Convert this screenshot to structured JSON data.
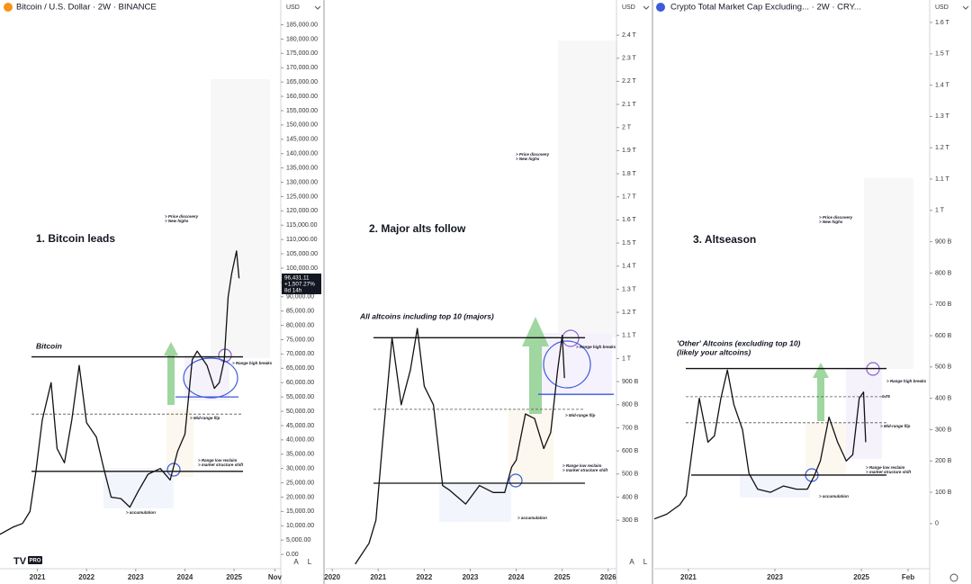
{
  "logo": "PRO",
  "controls": [
    "A",
    "L"
  ],
  "chart_data": [
    {
      "type": "line",
      "title": "Bitcoin / U.S. Dollar · 2W · BINANCE",
      "currency": "USD",
      "color": "#111111",
      "x": [
        2020.24,
        2020.5,
        2020.7,
        2020.85,
        2020.97,
        2021.1,
        2021.28,
        2021.4,
        2021.55,
        2021.7,
        2021.85,
        2022.0,
        2022.2,
        2022.35,
        2022.5,
        2022.7,
        2022.88,
        2023.05,
        2023.25,
        2023.5,
        2023.7,
        2023.85,
        2024.0,
        2024.15,
        2024.25,
        2024.45,
        2024.6,
        2024.7,
        2024.8,
        2024.88,
        2024.95,
        2025.05,
        2025.1
      ],
      "values": [
        7000,
        9500,
        10800,
        15000,
        29000,
        47000,
        60000,
        37000,
        32000,
        47000,
        66000,
        46000,
        41000,
        30000,
        20000,
        19500,
        16500,
        22000,
        28000,
        30000,
        26000,
        36000,
        42000,
        68000,
        71000,
        66000,
        58000,
        60000,
        68000,
        90000,
        98000,
        106000,
        96431.11
      ],
      "xlim": [
        2020.24,
        2025.95
      ],
      "ylim": [
        -5000,
        188000
      ],
      "xticks": [
        2021,
        2022,
        2023,
        2024,
        2025,
        {
          "value": 2025.83,
          "label": "Nov"
        }
      ],
      "yticks": [
        {
          "value": 0,
          "label": "0.00"
        },
        {
          "value": 5000,
          "label": "5,000.00"
        },
        {
          "value": 10000,
          "label": "10,000.00"
        },
        {
          "value": 15000,
          "label": "15,000.00"
        },
        {
          "value": 20000,
          "label": "20,000.00"
        },
        {
          "value": 25000,
          "label": "25,000.00"
        },
        {
          "value": 30000,
          "label": "30,000.00"
        },
        {
          "value": 35000,
          "label": "35,000.00"
        },
        {
          "value": 40000,
          "label": "40,000.00"
        },
        {
          "value": 45000,
          "label": "45,000.00"
        },
        {
          "value": 50000,
          "label": "50,000.00"
        },
        {
          "value": 55000,
          "label": "55,000.00"
        },
        {
          "value": 60000,
          "label": "60,000.00"
        },
        {
          "value": 65000,
          "label": "65,000.00"
        },
        {
          "value": 70000,
          "label": "70,000.00"
        },
        {
          "value": 75000,
          "label": "75,000.00"
        },
        {
          "value": 80000,
          "label": "80,000.00"
        },
        {
          "value": 85000,
          "label": "85,000.00"
        },
        {
          "value": 90000,
          "label": "90,000.00"
        },
        {
          "value": 95000,
          "label": "95,000.00"
        },
        {
          "value": 100000,
          "label": "100,000.00"
        },
        {
          "value": 105000,
          "label": "105,000.00"
        },
        {
          "value": 110000,
          "label": "110,000.00"
        },
        {
          "value": 115000,
          "label": "115,000.00"
        },
        {
          "value": 120000,
          "label": "120,000.00"
        },
        {
          "value": 125000,
          "label": "125,000.00"
        },
        {
          "value": 130000,
          "label": "130,000.00"
        },
        {
          "value": 135000,
          "label": "135,000.00"
        },
        {
          "value": 140000,
          "label": "140,000.00"
        },
        {
          "value": 145000,
          "label": "145,000.00"
        },
        {
          "value": 150000,
          "label": "150,000.00"
        },
        {
          "value": 155000,
          "label": "155,000.00"
        },
        {
          "value": 160000,
          "label": "160,000.00"
        },
        {
          "value": 165000,
          "label": "165,000.00"
        },
        {
          "value": 170000,
          "label": "170,000.00"
        },
        {
          "value": 175000,
          "label": "175,000.00"
        },
        {
          "value": 180000,
          "label": "180,000.00"
        },
        {
          "value": 185000,
          "label": "185,000.00"
        }
      ],
      "levels": [
        {
          "value": 69000,
          "color": "#111111",
          "dashed": false
        },
        {
          "value": 49000,
          "color": "#555555",
          "dashed": true
        },
        {
          "value": 29000,
          "color": "#111111",
          "dashed": false
        },
        {
          "value": 55000,
          "color": "#3b5bdb",
          "dashed": false
        }
      ],
      "price_label": [
        "96,431.11",
        "+1,507.27%",
        "8d 14h"
      ],
      "annotations": [
        "1. Bitcoin leads",
        "Bitcoin",
        "> Price discovery",
        "> New highs",
        "> Range high breaks",
        "> Mid-range flip",
        "> Range low reclaim",
        "> market structure shift",
        "> accumulation"
      ]
    },
    {
      "type": "line",
      "currency": "USD",
      "color": "#111111",
      "x": [
        2020.5,
        2020.8,
        2020.95,
        2021.1,
        2021.3,
        2021.5,
        2021.7,
        2021.85,
        2022.0,
        2022.2,
        2022.4,
        2022.55,
        2022.9,
        2023.2,
        2023.5,
        2023.75,
        2023.9,
        2024.0,
        2024.2,
        2024.4,
        2024.6,
        2024.75,
        2024.9,
        2025.0,
        2025.05
      ],
      "values": [
        110,
        200,
        300,
        650,
        1090,
        800,
        950,
        1130,
        880,
        800,
        450,
        430,
        370,
        450,
        420,
        420,
        530,
        560,
        760,
        740,
        610,
        680,
        950,
        1100,
        915
      ],
      "xlim": [
        2019.86,
        2026.18
      ],
      "ylim": [
        90,
        2482
      ],
      "xticks": [
        2020,
        2021,
        2022,
        2023,
        2024,
        2025,
        2026
      ],
      "yticks": [
        {
          "value": 300,
          "label": "300 B"
        },
        {
          "value": 400,
          "label": "400 B"
        },
        {
          "value": 500,
          "label": "500 B"
        },
        {
          "value": 600,
          "label": "600 B"
        },
        {
          "value": 700,
          "label": "700 B"
        },
        {
          "value": 800,
          "label": "800 B"
        },
        {
          "value": 900,
          "label": "900 B"
        },
        {
          "value": 1000,
          "label": "1 T"
        },
        {
          "value": 1100,
          "label": "1.1 T"
        },
        {
          "value": 1200,
          "label": "1.2 T"
        },
        {
          "value": 1300,
          "label": "1.3 T"
        },
        {
          "value": 1400,
          "label": "1.4 T"
        },
        {
          "value": 1500,
          "label": "1.5 T"
        },
        {
          "value": 1600,
          "label": "1.6 T"
        },
        {
          "value": 1700,
          "label": "1.7 T"
        },
        {
          "value": 1800,
          "label": "1.8 T"
        },
        {
          "value": 1900,
          "label": "1.9 T"
        },
        {
          "value": 2000,
          "label": "2 T"
        },
        {
          "value": 2100,
          "label": "2.1 T"
        },
        {
          "value": 2200,
          "label": "2.2 T"
        },
        {
          "value": 2300,
          "label": "2.3 T"
        },
        {
          "value": 2400,
          "label": "2.4 T"
        }
      ],
      "levels": [
        {
          "value": 1090,
          "color": "#111111",
          "dashed": false
        },
        {
          "value": 780,
          "color": "#555555",
          "dashed": true
        },
        {
          "value": 460,
          "color": "#111111",
          "dashed": false
        },
        {
          "value": 845,
          "color": "#3b5bdb",
          "dashed": false
        }
      ],
      "annotations": [
        "2. Major alts follow",
        "All altcoins including top 10 (majors)",
        "> Price discovery",
        "> New highs",
        "> Range high breaks",
        "> Mid-range flip",
        "> Range low reclaim",
        "> market structure shift",
        "> accumulation"
      ]
    },
    {
      "type": "line",
      "title": "Crypto Total Market Cap Excluding... · 2W · CRY...",
      "currency": "USD",
      "color": "#111111",
      "x": [
        2020.21,
        2020.5,
        2020.8,
        2020.95,
        2021.1,
        2021.25,
        2021.45,
        2021.6,
        2021.75,
        2021.9,
        2022.05,
        2022.25,
        2022.4,
        2022.6,
        2022.9,
        2023.2,
        2023.5,
        2023.75,
        2023.9,
        2024.05,
        2024.25,
        2024.45,
        2024.65,
        2024.8,
        2024.95,
        2025.05,
        2025.1
      ],
      "values": [
        15,
        30,
        60,
        90,
        250,
        400,
        260,
        280,
        400,
        490,
        380,
        300,
        160,
        110,
        100,
        120,
        110,
        110,
        150,
        200,
        340,
        260,
        200,
        220,
        400,
        420,
        260
      ],
      "xlim": [
        2020.21,
        2026.58
      ],
      "ylim": [
        -144,
        1620
      ],
      "xticks": [
        2021,
        2023,
        2025,
        {
          "value": 2026.08,
          "label": "Feb"
        }
      ],
      "yticks": [
        0,
        {
          "value": 100,
          "label": "100 B"
        },
        {
          "value": 200,
          "label": "200 B"
        },
        {
          "value": 300,
          "label": "300 B"
        },
        {
          "value": 400,
          "label": "400 B"
        },
        {
          "value": 500,
          "label": "500 B"
        },
        {
          "value": 600,
          "label": "600 B"
        },
        {
          "value": 700,
          "label": "700 B"
        },
        {
          "value": 800,
          "label": "800 B"
        },
        {
          "value": 900,
          "label": "900 B"
        },
        {
          "value": 1000,
          "label": "1 T"
        },
        {
          "value": 1100,
          "label": "1.1 T"
        },
        {
          "value": 1200,
          "label": "1.2 T"
        },
        {
          "value": 1300,
          "label": "1.3 T"
        },
        {
          "value": 1400,
          "label": "1.4 T"
        },
        {
          "value": 1500,
          "label": "1.5 T"
        },
        {
          "value": 1600,
          "label": "1.6 T"
        }
      ],
      "levels": [
        {
          "value": 495,
          "color": "#111111",
          "dashed": false
        },
        {
          "value": 405,
          "color": "#555555",
          "dashed": true
        },
        {
          "value": 322,
          "color": "#555555",
          "dashed": true
        },
        {
          "value": 155,
          "color": "#111111",
          "dashed": false
        }
      ],
      "annotations": [
        "3. Altseason",
        "'Other' Altcoins (excluding top 10)",
        "(likely your altcoins)",
        "> Price discovery",
        "> New highs",
        "> Range high breaks",
        "0.75",
        "> Mid-range flip",
        "> Range low reclaim",
        "> market structure shift",
        "> accumulation"
      ]
    }
  ]
}
